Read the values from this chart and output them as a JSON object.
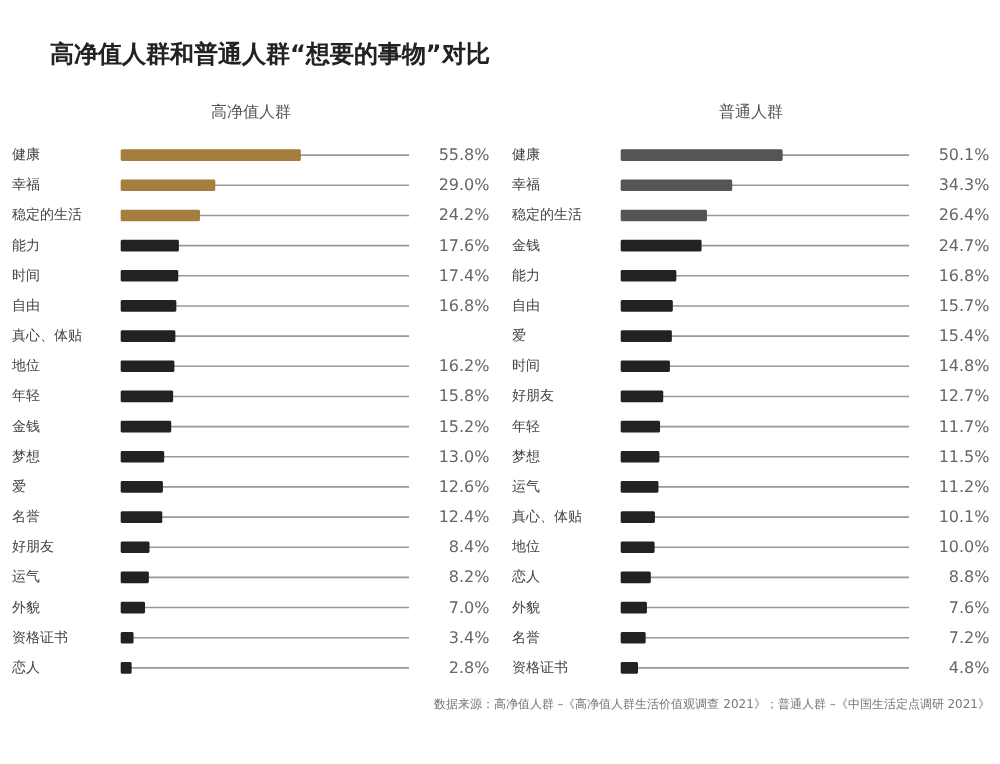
{
  "chart_data": [
    {
      "type": "bar",
      "orientation": "horizontal",
      "title": "高净值人群和普通人群“想要的事物”对比",
      "subtitle": "高净值人群",
      "categories": [
        "健康",
        "幸福",
        "稳定的生活",
        "能力",
        "时间",
        "自由",
        "真心、体贴",
        "地位",
        "年轻",
        "金钱",
        "梦想",
        "爱",
        "名誉",
        "好朋友",
        "运气",
        "外貌",
        "资格证书",
        "恋人"
      ],
      "values": [
        55.8,
        29.0,
        24.2,
        17.6,
        17.4,
        16.8,
        16.5,
        16.2,
        15.8,
        15.2,
        13.0,
        12.6,
        12.4,
        8.4,
        8.2,
        7.0,
        3.4,
        2.8
      ],
      "value_labels": [
        "55.8%",
        "29.0%",
        "24.2%",
        "17.6%",
        "17.4%",
        "16.8%",
        null,
        "16.2%",
        "15.8%",
        "15.2%",
        "13.0%",
        "12.6%",
        "12.4%",
        "8.4%",
        "8.2%",
        "7.0%",
        "3.4%",
        "2.8%"
      ],
      "colors": [
        "#a57d3c",
        "#a57d3c",
        "#a57d3c",
        "#222222",
        "#222222",
        "#222222",
        "#222222",
        "#222222",
        "#222222",
        "#222222",
        "#222222",
        "#222222",
        "#222222",
        "#222222",
        "#222222",
        "#222222",
        "#222222",
        "#222222"
      ],
      "xlim": [
        0,
        90
      ],
      "tick_labels": false,
      "grid": "y"
    },
    {
      "type": "bar",
      "orientation": "horizontal",
      "subtitle": "普通人群",
      "categories": [
        "健康",
        "幸福",
        "稳定的生活",
        "金钱",
        "能力",
        "自由",
        "爱",
        "时间",
        "好朋友",
        "年轻",
        "梦想",
        "运气",
        "真心、体贴",
        "地位",
        "恋人",
        "外貌",
        "名誉",
        "资格证书"
      ],
      "values": [
        50.1,
        34.3,
        26.4,
        24.7,
        16.8,
        15.7,
        15.4,
        14.8,
        12.7,
        11.7,
        11.5,
        11.2,
        10.1,
        10.0,
        8.8,
        7.6,
        7.2,
        4.8
      ],
      "value_labels": [
        "50.1%",
        "34.3%",
        "26.4%",
        "24.7%",
        "16.8%",
        "15.7%",
        "15.4%",
        "14.8%",
        "12.7%",
        "11.7%",
        "11.5%",
        "11.2%",
        "10.1%",
        "10.0%",
        "8.8%",
        "7.6%",
        "7.2%",
        "4.8%"
      ],
      "colors": [
        "#555555",
        "#555555",
        "#555555",
        "#222222",
        "#222222",
        "#222222",
        "#222222",
        "#222222",
        "#222222",
        "#222222",
        "#222222",
        "#222222",
        "#222222",
        "#222222",
        "#222222",
        "#222222",
        "#222222",
        "#222222"
      ],
      "xlim": [
        0,
        90
      ],
      "tick_labels": false,
      "grid": "y",
      "annotations": [
        "数据来源：高净值人群 –《高净值人群生活价值观调查 2021》；普通人群 –《中国生活定点调研 2021》"
      ]
    }
  ]
}
